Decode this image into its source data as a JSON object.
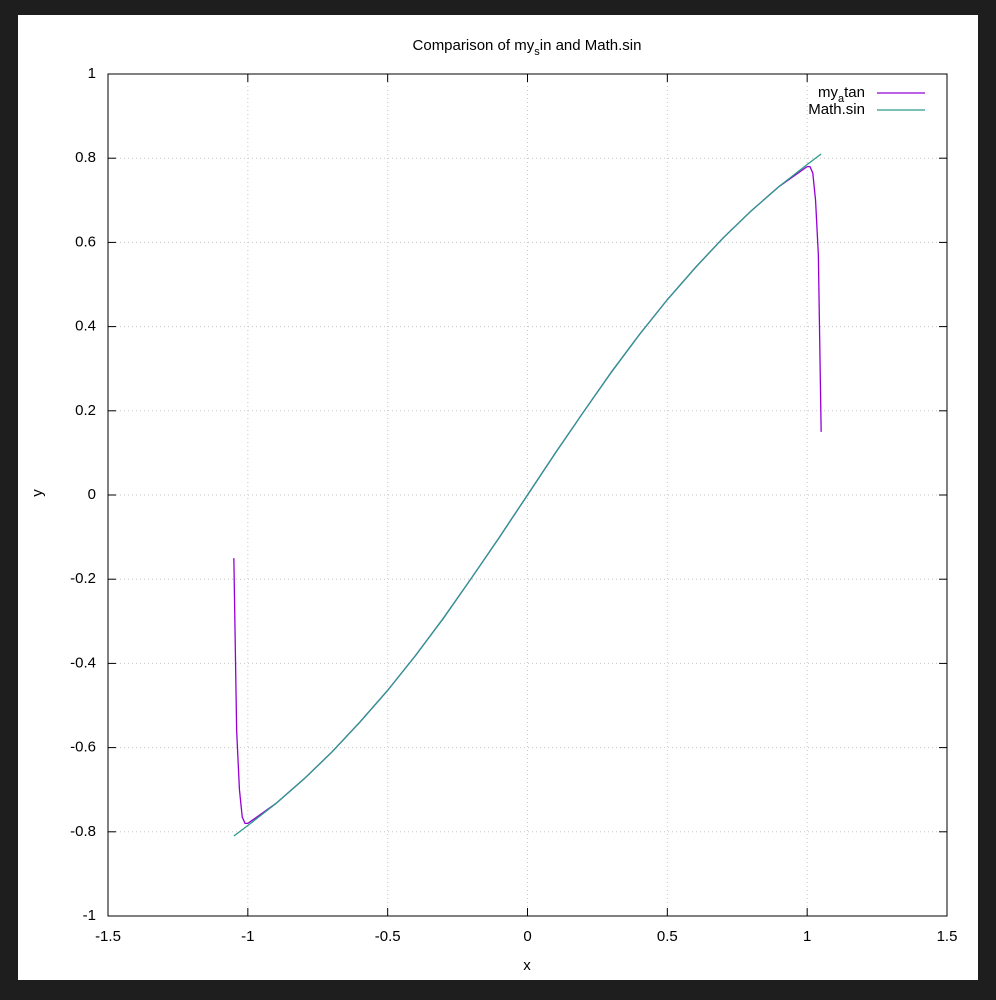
{
  "chart_data": {
    "type": "line",
    "title": [
      "Comparison of my",
      "s",
      "in and Math.sin"
    ],
    "x_label": "x",
    "y_label": "y",
    "xlim": [
      -1.5,
      1.5
    ],
    "ylim": [
      -1,
      1
    ],
    "xticks": [
      -1.5,
      -1,
      -0.5,
      0,
      0.5,
      1,
      1.5
    ],
    "yticks": [
      -1,
      -0.8,
      -0.6,
      -0.4,
      -0.2,
      0,
      0.2,
      0.4,
      0.6,
      0.8,
      1
    ],
    "grid": true,
    "legend": "top-right",
    "series": [
      {
        "name": [
          "my",
          "a",
          "tan"
        ],
        "color": "#9400d3",
        "x": [
          -1.05,
          -1.04,
          -1.03,
          -1.02,
          -1.01,
          -1.0,
          -0.9,
          -0.8,
          -0.7,
          -0.6,
          -0.5,
          -0.4,
          -0.3,
          -0.2,
          -0.1,
          0,
          0.1,
          0.2,
          0.3,
          0.4,
          0.5,
          0.6,
          0.7,
          0.8,
          0.9,
          1.0,
          1.01,
          1.02,
          1.03,
          1.04,
          1.05
        ],
        "values": [
          -0.15,
          -0.56,
          -0.7,
          -0.765,
          -0.78,
          -0.78,
          -0.733,
          -0.675,
          -0.611,
          -0.54,
          -0.464,
          -0.381,
          -0.292,
          -0.197,
          -0.1,
          0,
          0.1,
          0.197,
          0.292,
          0.381,
          0.464,
          0.54,
          0.611,
          0.675,
          0.733,
          0.78,
          0.78,
          0.765,
          0.7,
          0.57,
          0.15
        ]
      },
      {
        "name": [
          "Math.sin"
        ],
        "color": "#2a9a8a",
        "x": [
          -1.05,
          -1.0,
          -0.9,
          -0.8,
          -0.7,
          -0.6,
          -0.5,
          -0.4,
          -0.3,
          -0.2,
          -0.1,
          0,
          0.1,
          0.2,
          0.3,
          0.4,
          0.5,
          0.6,
          0.7,
          0.8,
          0.9,
          1.0,
          1.05
        ],
        "values": [
          -0.81,
          -0.785,
          -0.733,
          -0.675,
          -0.611,
          -0.54,
          -0.464,
          -0.381,
          -0.292,
          -0.197,
          -0.1,
          0,
          0.1,
          0.197,
          0.292,
          0.381,
          0.464,
          0.54,
          0.611,
          0.675,
          0.733,
          0.785,
          0.81
        ]
      }
    ]
  }
}
